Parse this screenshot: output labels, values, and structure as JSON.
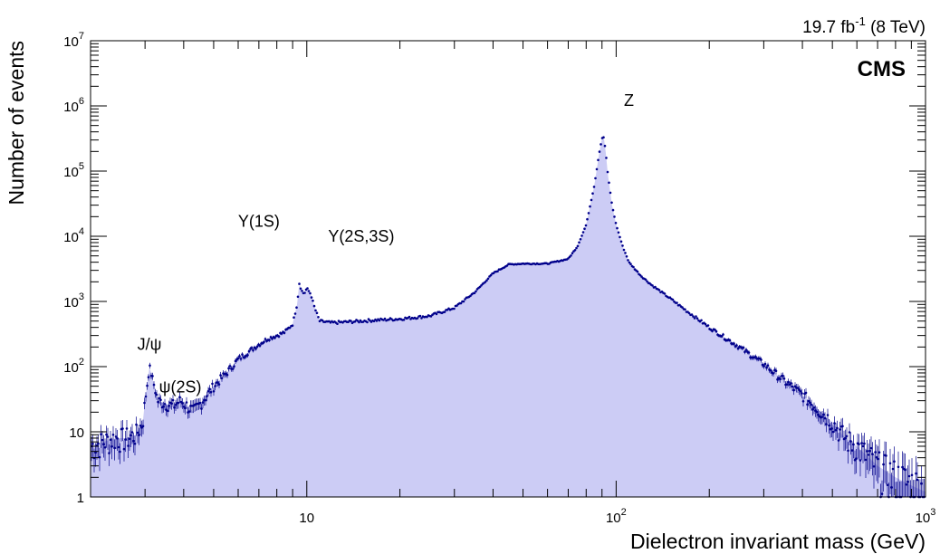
{
  "chart_data": {
    "type": "area",
    "xlabel": "Dielectron invariant mass (GeV)",
    "ylabel": "Number of events",
    "x_scale": "log",
    "y_scale": "log",
    "xlim": [
      2,
      1000
    ],
    "ylim": [
      1,
      10000000
    ],
    "x_ticks": [
      {
        "value": 10,
        "base": "10",
        "exp": ""
      },
      {
        "value": 100,
        "base": "10",
        "exp": "2"
      },
      {
        "value": 1000,
        "base": "10",
        "exp": "3"
      }
    ],
    "y_ticks": [
      {
        "value": 1,
        "base": "1",
        "exp": ""
      },
      {
        "value": 10,
        "base": "10",
        "exp": ""
      },
      {
        "value": 100,
        "base": "10",
        "exp": "2"
      },
      {
        "value": 1000,
        "base": "10",
        "exp": "3"
      },
      {
        "value": 10000,
        "base": "10",
        "exp": "4"
      },
      {
        "value": 100000,
        "base": "10",
        "exp": "5"
      },
      {
        "value": 1000000,
        "base": "10",
        "exp": "6"
      },
      {
        "value": 10000000,
        "base": "10",
        "exp": "7"
      }
    ],
    "lumi": {
      "value": "19.7 fb",
      "exp": "-1",
      "energy": " (8 TeV)"
    },
    "experiment": "CMS",
    "fill_color": "#ccccf5",
    "marker_color": "#00008b",
    "annotations": [
      {
        "text": "J/ψ",
        "x": 3.1,
        "y": 180
      },
      {
        "text": "ψ(2S)",
        "x": 3.9,
        "y": 40
      },
      {
        "text": "Υ(1S)",
        "x": 7.0,
        "y": 14000
      },
      {
        "text": "Υ(2S,3S)",
        "x": 15.0,
        "y": 8200
      },
      {
        "text": "Z",
        "x": 110,
        "y": 1000000
      }
    ],
    "series": [
      {
        "x": [
          2,
          2.2,
          2.4,
          2.6,
          2.8,
          2.95,
          3.0,
          3.1,
          3.2,
          3.3,
          3.5,
          3.7,
          3.9,
          4.1,
          4.3,
          4.6,
          5.0,
          5.5,
          6.0,
          6.5,
          7.0,
          7.5,
          8.0,
          8.5,
          9.0,
          9.3,
          9.46,
          9.6,
          9.8,
          10.0,
          10.3,
          10.6,
          11.0,
          12.0,
          14.0,
          17.0,
          20.0,
          25.0,
          30.0,
          35.0,
          40.0,
          45.0,
          50.0,
          60.0,
          70.0,
          75.0,
          80.0,
          85.0,
          88.0,
          90.0,
          91.2,
          92.5,
          94.0,
          97.0,
          100.0,
          105.0,
          110.0,
          120.0,
          130.0,
          150.0,
          170.0,
          200.0,
          250.0,
          300.0,
          350.0,
          400.0,
          450.0,
          500.0,
          550.0,
          600.0,
          700.0,
          800.0,
          900.0,
          1000.0
        ],
        "y": [
          6,
          7,
          8,
          8,
          9,
          14,
          30,
          100,
          55,
          30,
          27,
          25,
          30,
          25,
          20,
          30,
          50,
          80,
          130,
          170,
          220,
          270,
          300,
          340,
          450,
          900,
          1900,
          1500,
          1300,
          1600,
          1300,
          800,
          500,
          470,
          490,
          520,
          540,
          600,
          800,
          1400,
          2700,
          3700,
          3800,
          3800,
          4500,
          7000,
          15000,
          60000,
          180000,
          320000,
          330000,
          200000,
          90000,
          30000,
          15000,
          7000,
          4000,
          2500,
          1800,
          1100,
          700,
          400,
          200,
          110,
          60,
          37,
          22,
          14,
          8,
          6,
          3,
          2,
          1.5,
          1.2
        ]
      }
    ]
  }
}
